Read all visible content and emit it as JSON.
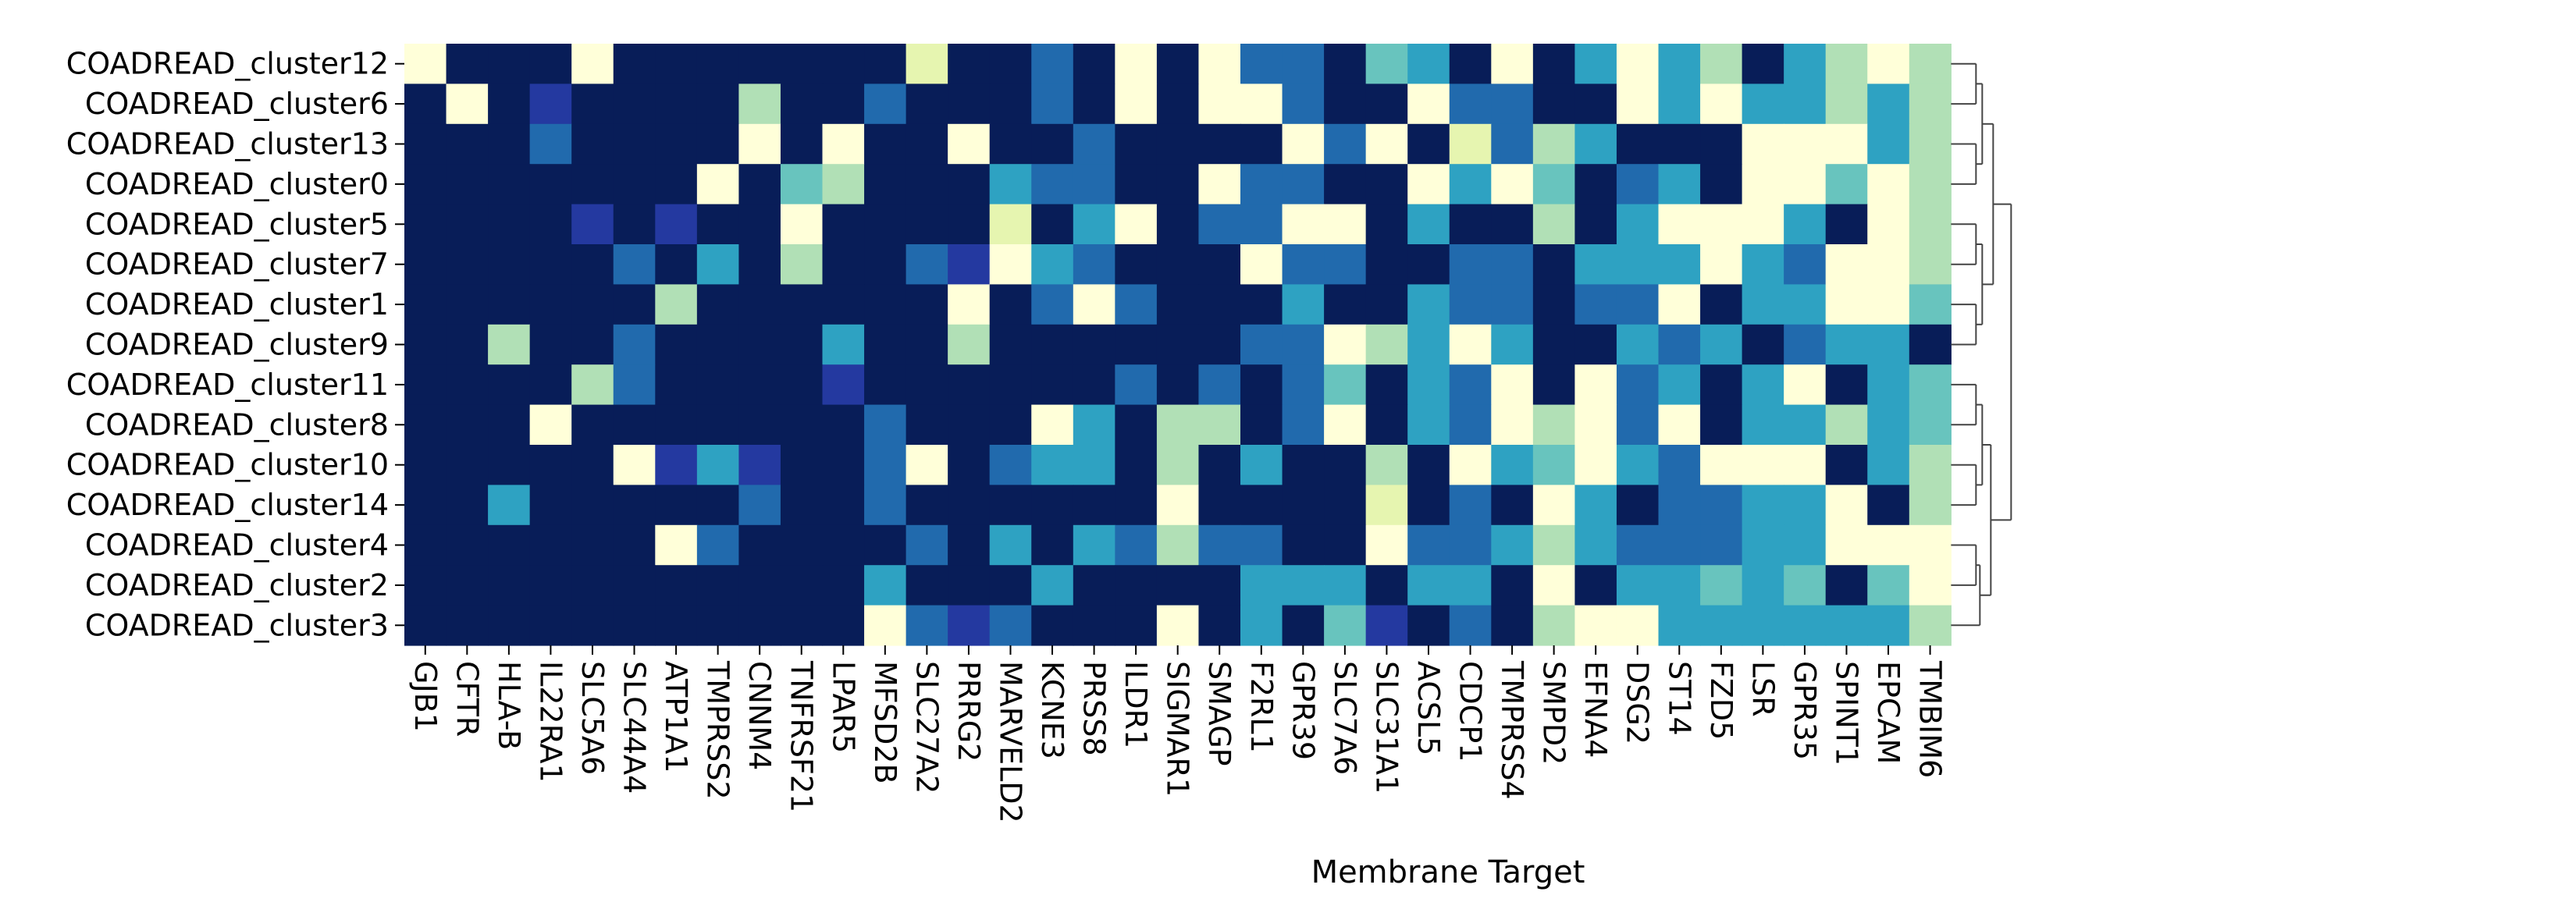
{
  "chart_data": {
    "type": "heatmap",
    "title": "",
    "xlabel": "Membrane Target",
    "ylabel": "",
    "colormap": "YlGnBu",
    "palette": [
      "#ffffd9",
      "#e6f5b0",
      "#b1e0b6",
      "#68c4be",
      "#2ea2c2",
      "#216aad",
      "#2439a0",
      "#081d58"
    ],
    "x_categories": [
      "GJB1",
      "CFTR",
      "HLA-B",
      "IL22RA1",
      "SLC5A6",
      "SLC44A4",
      "ATP1A1",
      "TMPRSS2",
      "CNNM4",
      "TNFRSF21",
      "LPAR5",
      "MFSD2B",
      "SLC27A2",
      "PRRG2",
      "MARVELD2",
      "KCNE3",
      "PRSS8",
      "ILDR1",
      "SIGMAR1",
      "SMAGP",
      "F2RL1",
      "GPR39",
      "SLC7A6",
      "SLC31A1",
      "ACSL5",
      "CDCP1",
      "TMPRSS4",
      "SMPD2",
      "EFNA4",
      "DSG2",
      "ST14",
      "FZD5",
      "LSR",
      "GPR35",
      "SPINT1",
      "EPCAM",
      "TMBIM6"
    ],
    "y_categories": [
      "COADREAD_cluster12",
      "COADREAD_cluster6",
      "COADREAD_cluster13",
      "COADREAD_cluster0",
      "COADREAD_cluster5",
      "COADREAD_cluster7",
      "COADREAD_cluster1",
      "COADREAD_cluster9",
      "COADREAD_cluster11",
      "COADREAD_cluster8",
      "COADREAD_cluster10",
      "COADREAD_cluster14",
      "COADREAD_cluster4",
      "COADREAD_cluster2",
      "COADREAD_cluster3"
    ],
    "values_level": [
      [
        0,
        7,
        7,
        7,
        0,
        7,
        7,
        7,
        7,
        7,
        7,
        7,
        1,
        7,
        7,
        5,
        7,
        0,
        7,
        0,
        5,
        5,
        7,
        3,
        4,
        7,
        0,
        7,
        4,
        0,
        4,
        2,
        7,
        4,
        2,
        0,
        2
      ],
      [
        7,
        0,
        7,
        6,
        7,
        7,
        7,
        7,
        2,
        7,
        7,
        5,
        7,
        7,
        7,
        5,
        7,
        0,
        7,
        0,
        0,
        5,
        7,
        7,
        0,
        5,
        5,
        7,
        7,
        0,
        4,
        0,
        4,
        4,
        2,
        4,
        2
      ],
      [
        7,
        7,
        7,
        5,
        7,
        7,
        7,
        7,
        0,
        7,
        0,
        7,
        7,
        0,
        7,
        7,
        5,
        7,
        7,
        7,
        7,
        0,
        5,
        0,
        7,
        1,
        5,
        2,
        4,
        7,
        7,
        7,
        0,
        0,
        0,
        4,
        2
      ],
      [
        7,
        7,
        7,
        7,
        7,
        7,
        7,
        0,
        7,
        3,
        2,
        7,
        7,
        7,
        4,
        5,
        5,
        7,
        7,
        0,
        5,
        5,
        7,
        7,
        0,
        4,
        0,
        3,
        7,
        5,
        4,
        7,
        0,
        0,
        3,
        0,
        2
      ],
      [
        7,
        7,
        7,
        7,
        6,
        7,
        6,
        7,
        7,
        0,
        7,
        7,
        7,
        7,
        1,
        7,
        4,
        0,
        7,
        5,
        5,
        0,
        0,
        7,
        4,
        7,
        7,
        2,
        7,
        4,
        0,
        0,
        0,
        4,
        7,
        0,
        2
      ],
      [
        7,
        7,
        7,
        7,
        7,
        5,
        7,
        4,
        7,
        2,
        7,
        7,
        5,
        6,
        0,
        4,
        5,
        7,
        7,
        7,
        0,
        5,
        5,
        7,
        7,
        5,
        5,
        7,
        4,
        4,
        4,
        0,
        4,
        5,
        0,
        0,
        2
      ],
      [
        7,
        7,
        7,
        7,
        7,
        7,
        2,
        7,
        7,
        7,
        7,
        7,
        7,
        0,
        7,
        5,
        0,
        5,
        7,
        7,
        7,
        4,
        7,
        7,
        4,
        5,
        5,
        7,
        5,
        5,
        0,
        7,
        4,
        4,
        0,
        0,
        3
      ],
      [
        7,
        7,
        2,
        7,
        7,
        5,
        7,
        7,
        7,
        7,
        4,
        7,
        7,
        2,
        7,
        7,
        7,
        7,
        7,
        7,
        5,
        5,
        0,
        2,
        4,
        0,
        4,
        7,
        7,
        4,
        5,
        4,
        7,
        5,
        4,
        4,
        7
      ],
      [
        7,
        7,
        7,
        7,
        2,
        5,
        7,
        7,
        7,
        7,
        6,
        7,
        7,
        7,
        7,
        7,
        7,
        5,
        7,
        5,
        7,
        5,
        3,
        7,
        4,
        5,
        0,
        7,
        0,
        5,
        4,
        7,
        4,
        0,
        7,
        4,
        3
      ],
      [
        7,
        7,
        7,
        0,
        7,
        7,
        7,
        7,
        7,
        7,
        7,
        5,
        7,
        7,
        7,
        0,
        4,
        7,
        2,
        2,
        7,
        5,
        0,
        7,
        4,
        5,
        0,
        2,
        0,
        5,
        0,
        7,
        4,
        4,
        2,
        4,
        3
      ],
      [
        7,
        7,
        7,
        7,
        7,
        0,
        6,
        4,
        6,
        7,
        7,
        5,
        0,
        7,
        5,
        4,
        4,
        7,
        2,
        7,
        4,
        7,
        7,
        2,
        7,
        0,
        4,
        3,
        0,
        4,
        5,
        0,
        0,
        0,
        7,
        4,
        2
      ],
      [
        7,
        7,
        4,
        7,
        7,
        7,
        7,
        7,
        5,
        7,
        7,
        5,
        7,
        7,
        7,
        7,
        7,
        7,
        0,
        7,
        7,
        7,
        7,
        1,
        7,
        5,
        7,
        0,
        4,
        7,
        5,
        5,
        4,
        4,
        0,
        7,
        2
      ],
      [
        7,
        7,
        7,
        7,
        7,
        7,
        0,
        5,
        7,
        7,
        7,
        7,
        5,
        7,
        4,
        7,
        4,
        5,
        2,
        5,
        5,
        7,
        7,
        0,
        5,
        5,
        4,
        2,
        4,
        5,
        5,
        5,
        4,
        4,
        0,
        0,
        0
      ],
      [
        7,
        7,
        7,
        7,
        7,
        7,
        7,
        7,
        7,
        7,
        7,
        4,
        7,
        7,
        7,
        4,
        7,
        7,
        7,
        7,
        4,
        4,
        4,
        7,
        4,
        4,
        7,
        0,
        7,
        4,
        4,
        3,
        4,
        3,
        7,
        3,
        0
      ],
      [
        7,
        7,
        7,
        7,
        7,
        7,
        7,
        7,
        7,
        7,
        7,
        0,
        5,
        6,
        5,
        7,
        7,
        7,
        0,
        7,
        4,
        7,
        3,
        6,
        7,
        5,
        7,
        2,
        0,
        0,
        4,
        4,
        4,
        4,
        4,
        4,
        2
      ]
    ],
    "dendrogram": "right",
    "grid": false,
    "legend": "none"
  }
}
